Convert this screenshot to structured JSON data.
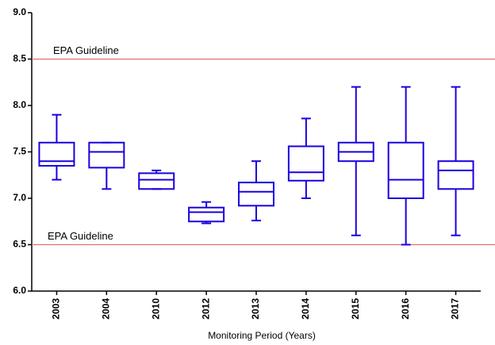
{
  "chart_data": {
    "type": "box",
    "x_label": "Monitoring Period (Years)",
    "categories": [
      "2003",
      "2004",
      "2010",
      "2012",
      "2013",
      "2014",
      "2015",
      "2016",
      "2017"
    ],
    "min": [
      7.2,
      7.1,
      7.1,
      6.73,
      6.76,
      7.0,
      6.6,
      6.5,
      6.6
    ],
    "q1": [
      7.35,
      7.33,
      7.1,
      6.75,
      6.92,
      7.19,
      7.4,
      7.0,
      7.1
    ],
    "median": [
      7.4,
      7.5,
      7.2,
      6.85,
      7.07,
      7.28,
      7.5,
      7.2,
      7.3
    ],
    "q3": [
      7.6,
      7.6,
      7.27,
      6.9,
      7.17,
      7.56,
      7.6,
      7.6,
      7.4
    ],
    "max": [
      7.9,
      7.6,
      7.3,
      6.96,
      7.4,
      7.86,
      8.2,
      8.2,
      8.2
    ],
    "color": "#1a00e0",
    "reference_lines": [
      {
        "value": 8.5,
        "label": "EPA Guideline"
      },
      {
        "value": 6.5,
        "label": "EPA Guideline"
      }
    ],
    "reference_color": "#e07070",
    "ylim": [
      6.0,
      9.0
    ],
    "yticks": [
      {
        "value": 6.0,
        "label": "6.0"
      },
      {
        "value": 6.5,
        "label": "6.5"
      },
      {
        "value": 7.0,
        "label": "7.0"
      },
      {
        "value": 7.5,
        "label": "7.5"
      },
      {
        "value": 8.0,
        "label": "8.0"
      },
      {
        "value": 8.5,
        "label": "8.5"
      },
      {
        "value": 9.0,
        "label": "9.0"
      }
    ]
  }
}
